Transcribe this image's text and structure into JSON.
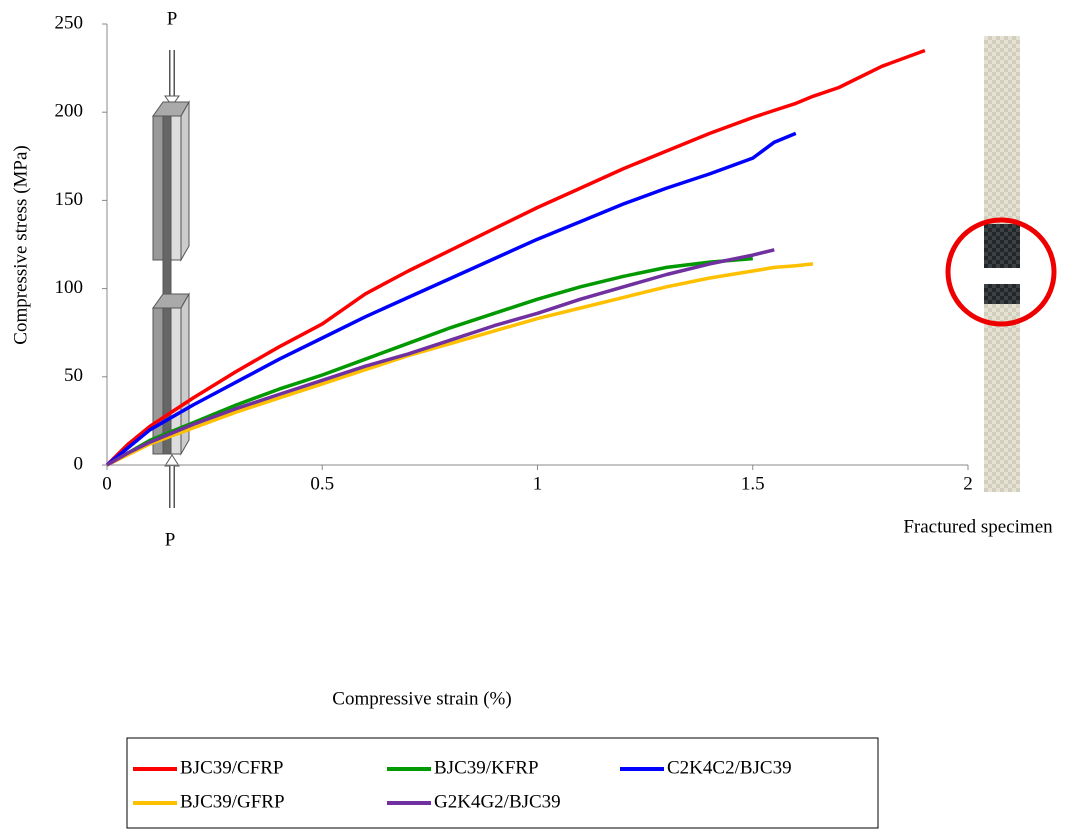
{
  "chart_data": {
    "type": "line",
    "x_label": "Compressive strain (%)",
    "y_label": "Compressive stress (MPa)",
    "annotations": [
      "P",
      "P",
      "Fractured specimen"
    ],
    "x": [
      0,
      0.05,
      0.1,
      0.2,
      0.3,
      0.4,
      0.5,
      0.6,
      0.7,
      0.8,
      0.9,
      1.0,
      1.1,
      1.2,
      1.3,
      1.4,
      1.5,
      1.55,
      1.6,
      1.64,
      1.7,
      1.8,
      1.9
    ],
    "series": [
      {
        "name": "BJC39/CFRP",
        "color": "#ff0000",
        "values": [
          0,
          12,
          22,
          38,
          53,
          67,
          80,
          97,
          110,
          122,
          134,
          146,
          157,
          168,
          178,
          188,
          197,
          201,
          205,
          209,
          214,
          226,
          235
        ]
      },
      {
        "name": "BJC39/KFRP",
        "color": "#009900",
        "values": [
          0,
          7,
          14,
          24,
          34,
          43,
          51,
          60,
          69,
          78,
          86,
          94,
          101,
          107,
          112,
          115,
          117,
          null,
          null,
          null,
          null,
          null,
          null
        ]
      },
      {
        "name": "C2K4C2/BJC39",
        "color": "#0000ff",
        "values": [
          0,
          10,
          20,
          34,
          47,
          60,
          72,
          84,
          95,
          106,
          117,
          128,
          138,
          148,
          157,
          165,
          174,
          183,
          188,
          null,
          null,
          null,
          null
        ]
      },
      {
        "name": "BJC39/GFRP",
        "color": "#ffc000",
        "values": [
          0,
          6,
          12,
          21,
          30,
          38,
          46,
          54,
          62,
          69,
          76,
          83,
          89,
          95,
          101,
          106,
          110,
          112,
          113,
          114,
          null,
          null,
          null
        ]
      },
      {
        "name": "G2K4G2/BJC39",
        "color": "#7030a0",
        "values": [
          0,
          7,
          13,
          23,
          32,
          40,
          48,
          56,
          63,
          71,
          79,
          86,
          94,
          101,
          108,
          114,
          119,
          122,
          null,
          null,
          null,
          null,
          null
        ]
      }
    ],
    "xlim": [
      0,
      2
    ],
    "xticks": [
      0,
      0.5,
      1,
      1.5,
      2
    ],
    "ylim": [
      0,
      250
    ],
    "yticks": [
      0,
      50,
      100,
      150,
      200,
      250
    ],
    "grid": false,
    "legend": "bottom"
  }
}
